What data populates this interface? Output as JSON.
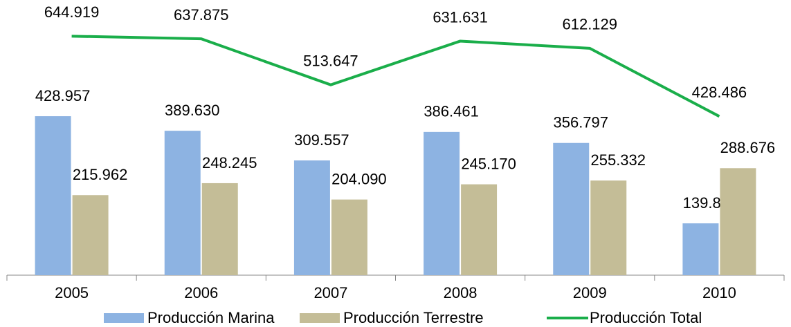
{
  "chart_data": {
    "type": "bar",
    "categories": [
      "2005",
      "2006",
      "2007",
      "2008",
      "2009",
      "2010"
    ],
    "series": [
      {
        "name": "Producción Marina",
        "type": "bar",
        "color": "#8db3e2",
        "values": [
          428957,
          389630,
          309557,
          386461,
          356797,
          139809
        ],
        "value_labels": [
          "428.957",
          "389.630",
          "309.557",
          "386.461",
          "356.797",
          "139.809"
        ]
      },
      {
        "name": "Producción Terrestre",
        "type": "bar",
        "color": "#c4bd97",
        "values": [
          215962,
          248245,
          204090,
          245170,
          255332,
          288676
        ],
        "value_labels": [
          "215.962",
          "248.245",
          "204.090",
          "245.170",
          "255.332",
          "288.676"
        ]
      },
      {
        "name": "Producción Total",
        "type": "line",
        "color": "#1aae4a",
        "values": [
          644919,
          637875,
          513647,
          631631,
          612129,
          428486
        ],
        "value_labels": [
          "644.919",
          "637.875",
          "513.647",
          "631.631",
          "612.129",
          "428.486"
        ]
      }
    ],
    "legend": "bottom"
  }
}
